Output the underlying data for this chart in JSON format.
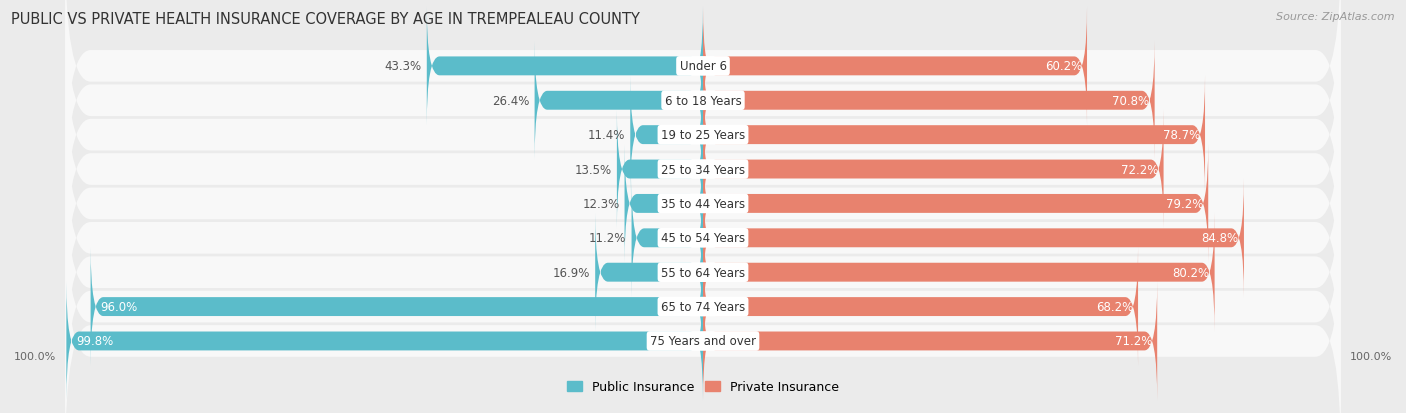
{
  "title": "PUBLIC VS PRIVATE HEALTH INSURANCE COVERAGE BY AGE IN TREMPEALEAU COUNTY",
  "source": "Source: ZipAtlas.com",
  "categories": [
    "Under 6",
    "6 to 18 Years",
    "19 to 25 Years",
    "25 to 34 Years",
    "35 to 44 Years",
    "45 to 54 Years",
    "55 to 64 Years",
    "65 to 74 Years",
    "75 Years and over"
  ],
  "public_values": [
    43.3,
    26.4,
    11.4,
    13.5,
    12.3,
    11.2,
    16.9,
    96.0,
    99.8
  ],
  "private_values": [
    60.2,
    70.8,
    78.7,
    72.2,
    79.2,
    84.8,
    80.2,
    68.2,
    71.2
  ],
  "public_color": "#5bbcca",
  "private_color": "#e8826e",
  "bg_color": "#ebebeb",
  "row_bg_color": "#f8f8f8",
  "title_fontsize": 10.5,
  "source_fontsize": 8,
  "label_fontsize": 8.5,
  "cat_fontsize": 8.5,
  "legend_fontsize": 9,
  "max_val": 100.0,
  "axis_label": "100.0%"
}
